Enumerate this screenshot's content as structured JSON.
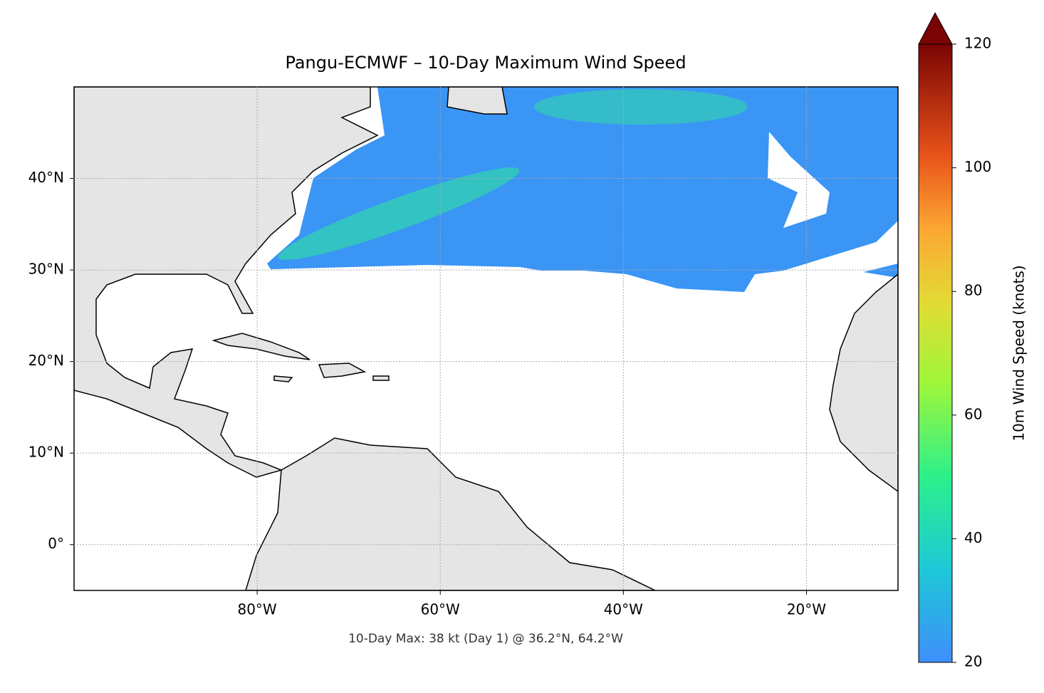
{
  "chart_data": {
    "type": "map",
    "title": "Pangu-ECMWF – 10-Day Maximum Wind Speed",
    "annotation": "10-Day Max: 38 kt (Day 1) @ 36.2°N, 64.2°W",
    "xlim": [
      -100,
      -10
    ],
    "ylim": [
      -5,
      50
    ],
    "xticks": [
      {
        "value": -80,
        "label": "80°W"
      },
      {
        "value": -60,
        "label": "60°W"
      },
      {
        "value": -40,
        "label": "40°W"
      },
      {
        "value": -20,
        "label": "20°W"
      }
    ],
    "yticks": [
      {
        "value": 0,
        "label": "0°"
      },
      {
        "value": 10,
        "label": "10°N"
      },
      {
        "value": 20,
        "label": "20°N"
      },
      {
        "value": 30,
        "label": "30°N"
      },
      {
        "value": 40,
        "label": "40°N"
      }
    ],
    "grid": true,
    "colorbar": {
      "label": "10m Wind Speed (knots)",
      "lim": [
        20,
        120
      ],
      "ticks": [
        20,
        40,
        60,
        80,
        100,
        120
      ]
    }
  }
}
